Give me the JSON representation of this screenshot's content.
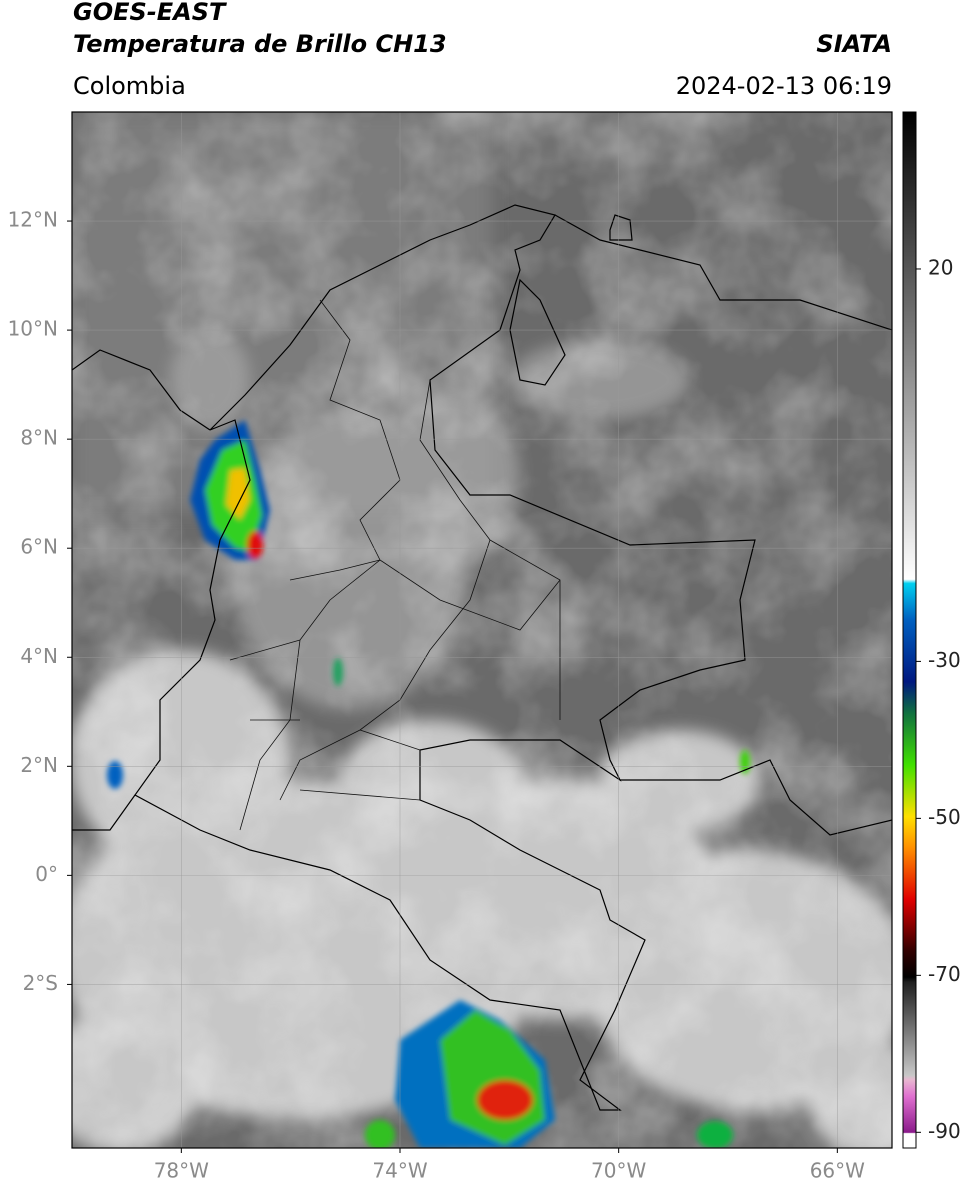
{
  "chart_data": {
    "type": "map",
    "title": "GOES-EAST",
    "subtitle": "Temperatura de Brillo CH13",
    "region": "Colombia",
    "source": "SIATA",
    "timestamp": "2024-02-13 06:19",
    "xlim": [
      -80,
      -65
    ],
    "ylim": [
      -5,
      14
    ],
    "xticks": [
      {
        "value": -78,
        "label": "78°W"
      },
      {
        "value": -74,
        "label": "74°W"
      },
      {
        "value": -70,
        "label": "70°W"
      },
      {
        "value": -66,
        "label": "66°W"
      }
    ],
    "yticks": [
      {
        "value": 12,
        "label": "12°N"
      },
      {
        "value": 10,
        "label": "10°N"
      },
      {
        "value": 8,
        "label": "8°N"
      },
      {
        "value": 6,
        "label": "6°N"
      },
      {
        "value": 4,
        "label": "4°N"
      },
      {
        "value": 2,
        "label": "2°N"
      },
      {
        "value": 0,
        "label": "0°"
      },
      {
        "value": -2,
        "label": "2°S"
      }
    ],
    "grid": true,
    "colorbar": {
      "lim": [
        -92,
        40
      ],
      "ticks": [
        20,
        -30,
        -50,
        -70,
        -90
      ]
    }
  }
}
